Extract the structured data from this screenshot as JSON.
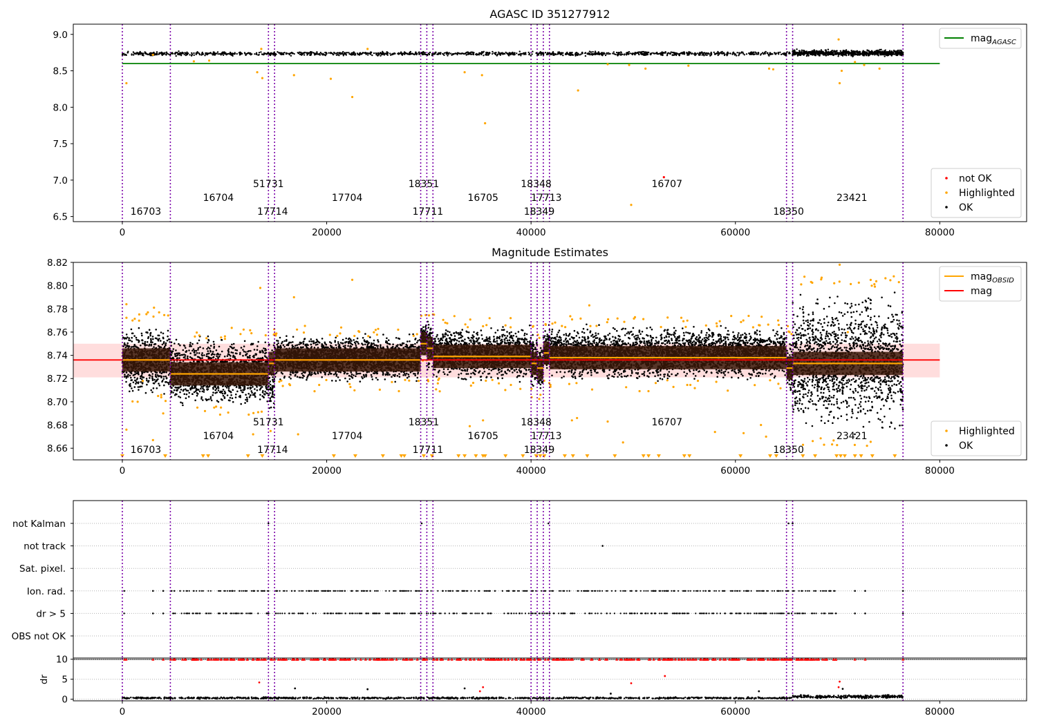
{
  "chart_data": [
    {
      "type": "scatter",
      "title": "AGASC ID 351277912",
      "xlabel": "",
      "ylabel": "",
      "xlim": [
        -4800,
        88500
      ],
      "ylim": [
        6.43,
        9.14
      ],
      "xticks": [
        0,
        20000,
        40000,
        60000,
        80000
      ],
      "xtick_labels": [
        "0",
        "20000",
        "40000",
        "60000",
        "80000"
      ],
      "yticks": [
        6.5,
        7.0,
        7.5,
        8.0,
        8.5,
        9.0
      ],
      "ytick_labels": [
        "6.5",
        "7.0",
        "7.5",
        "8.0",
        "8.5",
        "9.0"
      ],
      "grid": false,
      "legends": [
        {
          "placement": "upper-right",
          "entries": [
            {
              "label": "mag",
              "sub": "AGASC",
              "color": "#008000",
              "kind": "line"
            }
          ]
        },
        {
          "placement": "lower-right",
          "entries": [
            {
              "label": "not OK",
              "color": "#ff0000",
              "kind": "dot"
            },
            {
              "label": "Highlighted",
              "color": "#ffa500",
              "kind": "dot"
            },
            {
              "label": "OK",
              "color": "#000000",
              "kind": "dot"
            }
          ]
        }
      ],
      "series": [
        {
          "name": "mag_AGASC",
          "kind": "hline",
          "value": 8.6,
          "x_range": [
            0,
            80000
          ],
          "color": "#008000"
        },
        {
          "name": "OK",
          "kind": "band",
          "color": "#000000",
          "segments": [
            [
              0,
              76400,
              8.7,
              8.77
            ],
            [
              65600,
              76400,
              8.69,
              8.8
            ]
          ]
        },
        {
          "name": "Highlighted",
          "kind": "points",
          "color": "#ffa500",
          "points": [
            [
              400,
              8.33
            ],
            [
              3000,
              8.72
            ],
            [
              7000,
              8.63
            ],
            [
              8500,
              8.64
            ],
            [
              13200,
              8.48
            ],
            [
              13700,
              8.4
            ],
            [
              13600,
              8.8
            ],
            [
              16800,
              8.44
            ],
            [
              20400,
              8.39
            ],
            [
              22500,
              8.14
            ],
            [
              24000,
              8.8
            ],
            [
              33500,
              8.48
            ],
            [
              35200,
              8.44
            ],
            [
              35500,
              7.78
            ],
            [
              44600,
              8.23
            ],
            [
              47500,
              8.59
            ],
            [
              49600,
              8.58
            ],
            [
              51200,
              8.53
            ],
            [
              55400,
              8.57
            ],
            [
              63300,
              8.53
            ],
            [
              63700,
              8.52
            ],
            [
              70100,
              8.93
            ],
            [
              70200,
              8.33
            ],
            [
              70400,
              8.5
            ],
            [
              71700,
              8.62
            ],
            [
              72600,
              8.58
            ],
            [
              74100,
              8.53
            ],
            [
              49800,
              6.66
            ]
          ]
        },
        {
          "name": "not OK",
          "kind": "points",
          "color": "#ff0000",
          "points": [
            [
              53000,
              7.04
            ]
          ]
        }
      ],
      "obsids": [
        {
          "label": "16703",
          "x": 2300,
          "row": 3
        },
        {
          "label": "16704",
          "x": 9400,
          "row": 2
        },
        {
          "label": "51731",
          "x": 14300,
          "row": 1
        },
        {
          "label": "17714",
          "x": 14700,
          "row": 3
        },
        {
          "label": "17704",
          "x": 22000,
          "row": 2
        },
        {
          "label": "18351",
          "x": 29500,
          "row": 1
        },
        {
          "label": "17711",
          "x": 29900,
          "row": 3
        },
        {
          "label": "16705",
          "x": 35300,
          "row": 2
        },
        {
          "label": "18348",
          "x": 40500,
          "row": 1
        },
        {
          "label": "17713",
          "x": 41500,
          "row": 2
        },
        {
          "label": "18349",
          "x": 40800,
          "row": 3
        },
        {
          "label": "16707",
          "x": 53300,
          "row": 1
        },
        {
          "label": "18350",
          "x": 65200,
          "row": 3
        },
        {
          "label": "23421",
          "x": 71400,
          "row": 2
        }
      ]
    },
    {
      "type": "scatter",
      "title": "Magnitude Estimates",
      "xlabel": "",
      "ylabel": "",
      "xlim": [
        -4800,
        88500
      ],
      "ylim": [
        8.65,
        8.82
      ],
      "xticks": [
        0,
        20000,
        40000,
        60000,
        80000
      ],
      "xtick_labels": [
        "0",
        "20000",
        "40000",
        "60000",
        "80000"
      ],
      "yticks": [
        8.66,
        8.68,
        8.7,
        8.72,
        8.74,
        8.76,
        8.78,
        8.8,
        8.82
      ],
      "ytick_labels": [
        "8.66",
        "8.68",
        "8.70",
        "8.72",
        "8.74",
        "8.76",
        "8.78",
        "8.80",
        "8.82"
      ],
      "grid": false,
      "legends": [
        {
          "placement": "upper-right",
          "entries": [
            {
              "label": "mag",
              "sub": "OBSID",
              "color": "#ffa500",
              "kind": "line"
            },
            {
              "label": "mag",
              "sub": "",
              "color": "#ff0000",
              "kind": "line"
            }
          ]
        },
        {
          "placement": "lower-right",
          "entries": [
            {
              "label": "Highlighted",
              "color": "#ffa500",
              "kind": "dot"
            },
            {
              "label": "OK",
              "color": "#000000",
              "kind": "dot"
            }
          ]
        }
      ],
      "mag": {
        "value": 8.736,
        "band": [
          8.721,
          8.75
        ],
        "x_range": [
          -4800,
          80000
        ],
        "color": "#ff0000"
      },
      "segments": [
        {
          "x0": 0,
          "x1": 4700,
          "mag": 8.736,
          "lo": 8.703,
          "hi": 8.77
        },
        {
          "x0": 4700,
          "x1": 14300,
          "mag": 8.724,
          "lo": 8.692,
          "hi": 8.758
        },
        {
          "x0": 14300,
          "x1": 14900,
          "mag": 8.733,
          "lo": 8.678,
          "hi": 8.76
        },
        {
          "x0": 14900,
          "x1": 29200,
          "mag": 8.736,
          "lo": 8.715,
          "hi": 8.76
        },
        {
          "x0": 29200,
          "x1": 29800,
          "mag": 8.75,
          "lo": 8.735,
          "hi": 8.772
        },
        {
          "x0": 29800,
          "x1": 30400,
          "mag": 8.746,
          "lo": 8.722,
          "hi": 8.775
        },
        {
          "x0": 30400,
          "x1": 40000,
          "mag": 8.739,
          "lo": 8.715,
          "hi": 8.768
        },
        {
          "x0": 40000,
          "x1": 40600,
          "mag": 8.733,
          "lo": 8.708,
          "hi": 8.762
        },
        {
          "x0": 40600,
          "x1": 41200,
          "mag": 8.729,
          "lo": 8.705,
          "hi": 8.755
        },
        {
          "x0": 41200,
          "x1": 41800,
          "mag": 8.742,
          "lo": 8.72,
          "hi": 8.77
        },
        {
          "x0": 41800,
          "x1": 65000,
          "mag": 8.738,
          "lo": 8.715,
          "hi": 8.768
        },
        {
          "x0": 65000,
          "x1": 65600,
          "mag": 8.729,
          "lo": 8.7,
          "hi": 8.76
        },
        {
          "x0": 65600,
          "x1": 76400,
          "mag": 8.733,
          "lo": 8.668,
          "hi": 8.802
        }
      ],
      "highlighted_points": [
        [
          400,
          8.784
        ],
        [
          1000,
          8.77
        ],
        [
          2500,
          8.777
        ],
        [
          3100,
          8.781
        ],
        [
          3600,
          8.777
        ],
        [
          1500,
          8.7
        ],
        [
          2000,
          8.718
        ],
        [
          3500,
          8.705
        ],
        [
          4000,
          8.69
        ],
        [
          400,
          8.676
        ],
        [
          3000,
          8.667
        ],
        [
          13500,
          8.798
        ],
        [
          16800,
          8.79
        ],
        [
          22500,
          8.805
        ],
        [
          17200,
          8.672
        ],
        [
          12800,
          8.672
        ],
        [
          34000,
          8.679
        ],
        [
          35300,
          8.684
        ],
        [
          44000,
          8.684
        ],
        [
          44500,
          8.686
        ],
        [
          47500,
          8.683
        ],
        [
          49000,
          8.665
        ],
        [
          58000,
          8.674
        ],
        [
          60800,
          8.673
        ],
        [
          63000,
          8.67
        ],
        [
          70200,
          8.818
        ],
        [
          71000,
          8.76
        ],
        [
          75500,
          8.808
        ],
        [
          76000,
          8.803
        ],
        [
          29000,
          8.718
        ],
        [
          31000,
          8.72
        ],
        [
          62500,
          8.68
        ],
        [
          30500,
          8.775
        ],
        [
          38000,
          8.772
        ],
        [
          45700,
          8.783
        ]
      ],
      "highlighted_low_x": [
        0,
        4200,
        7900,
        8400,
        12300,
        13700,
        20700,
        22800,
        25500,
        27300,
        27600,
        29500,
        30300,
        32900,
        33500,
        34600,
        35300,
        35500,
        37500,
        39200,
        40500,
        40900,
        41300,
        43300,
        44100,
        45500,
        48200,
        51000,
        51500,
        52500,
        55000,
        55500,
        60500,
        63400,
        64000,
        66600,
        67800,
        69900,
        70300,
        70700,
        71700,
        72300,
        73400,
        75600
      ],
      "obsids": [
        {
          "label": "16703",
          "x": 2300,
          "row": 3
        },
        {
          "label": "16704",
          "x": 9400,
          "row": 2
        },
        {
          "label": "51731",
          "x": 14300,
          "row": 1
        },
        {
          "label": "17714",
          "x": 14700,
          "row": 3
        },
        {
          "label": "17704",
          "x": 22000,
          "row": 2
        },
        {
          "label": "18351",
          "x": 29500,
          "row": 1
        },
        {
          "label": "17711",
          "x": 29900,
          "row": 3
        },
        {
          "label": "16705",
          "x": 35300,
          "row": 2
        },
        {
          "label": "18348",
          "x": 40500,
          "row": 1
        },
        {
          "label": "17713",
          "x": 41500,
          "row": 2
        },
        {
          "label": "18349",
          "x": 40800,
          "row": 3
        },
        {
          "label": "16707",
          "x": 53300,
          "row": 1
        },
        {
          "label": "18350",
          "x": 65200,
          "row": 3
        },
        {
          "label": "23421",
          "x": 71400,
          "row": 2
        }
      ]
    },
    {
      "type": "scatter",
      "title": "",
      "xlabel": "",
      "ylabel": "",
      "xlim": [
        -4800,
        88500
      ],
      "xticks": [
        0,
        20000,
        40000,
        60000,
        80000
      ],
      "xtick_labels": [
        "0",
        "20000",
        "40000",
        "60000",
        "80000"
      ],
      "flag_rows": [
        "not Kalman",
        "not track",
        "Sat. pixel.",
        "Ion. rad.",
        "dr > 5",
        "OBS not OK"
      ],
      "grid": "dotted horizontal",
      "flag_points": [
        {
          "row": "not Kalman",
          "x": [
            14300,
            29300,
            41700,
            65200,
            65600
          ]
        },
        {
          "row": "not track",
          "x": [
            47000
          ]
        },
        {
          "row": "Ion. rad.",
          "x_ranges": [
            [
              0,
              400
            ],
            [
              4700,
              69900
            ]
          ],
          "x": [
            3000,
            4000,
            71700,
            72700,
            76400
          ]
        },
        {
          "row": "dr > 5",
          "x_ranges": [
            [
              0,
              400
            ],
            [
              4700,
              69900
            ]
          ],
          "x": [
            3000,
            4000,
            71700,
            72700,
            76400
          ]
        }
      ]
    },
    {
      "type": "scatter",
      "title": "",
      "xlabel": "",
      "ylabel": "dr",
      "xlim": [
        -4800,
        88500
      ],
      "ylim": [
        -0.4,
        10.3
      ],
      "xticks": [
        0,
        20000,
        40000,
        60000,
        80000
      ],
      "xtick_labels": [
        "0",
        "20000",
        "40000",
        "60000",
        "80000"
      ],
      "yticks": [
        0,
        5,
        10
      ],
      "ytick_labels": [
        "0",
        "5",
        "10"
      ],
      "grid": "dotted horizontal",
      "series": [
        {
          "name": "dr OK",
          "kind": "band",
          "color": "#000000",
          "segments": [
            [
              0,
              65600,
              0.0,
              0.6
            ],
            [
              65600,
              76400,
              0.1,
              1.2
            ]
          ]
        },
        {
          "name": "dr capped",
          "kind": "capped",
          "color": "#ff0000",
          "value": 10,
          "x_ranges": [
            [
              0,
              400
            ],
            [
              4700,
              69900
            ]
          ],
          "x": [
            3000,
            4000,
            71700,
            72700,
            76400
          ]
        },
        {
          "name": "dr outliers",
          "kind": "points",
          "color": "#ff0000",
          "points": [
            [
              13400,
              4.2
            ],
            [
              35300,
              3.0
            ],
            [
              49800,
              4.0
            ],
            [
              53100,
              5.8
            ],
            [
              70200,
              4.4
            ],
            [
              35000,
              2.0
            ],
            [
              70100,
              3.0
            ]
          ]
        },
        {
          "name": "dr highlighted",
          "kind": "points",
          "color": "#000000",
          "points": [
            [
              16900,
              2.7
            ],
            [
              24000,
              2.5
            ],
            [
              33500,
              2.7
            ],
            [
              62300,
              2.0
            ],
            [
              70500,
              2.6
            ],
            [
              47800,
              1.4
            ]
          ]
        }
      ]
    }
  ],
  "obsid_boundaries": [
    0,
    4700,
    14300,
    14900,
    29200,
    29800,
    30400,
    40000,
    40600,
    41200,
    41800,
    65000,
    65600,
    76400
  ],
  "colors": {
    "ok": "#000000",
    "highlighted": "#ffa500",
    "not_ok": "#ff0000",
    "mag_agasc": "#008000",
    "mag": "#ff0000",
    "mag_obsid": "#ffa500",
    "mag_band": "#ffdddd",
    "obsid_band": "#3a1808",
    "boundary": "#7a00a8",
    "grid": "#b0b0b0"
  }
}
